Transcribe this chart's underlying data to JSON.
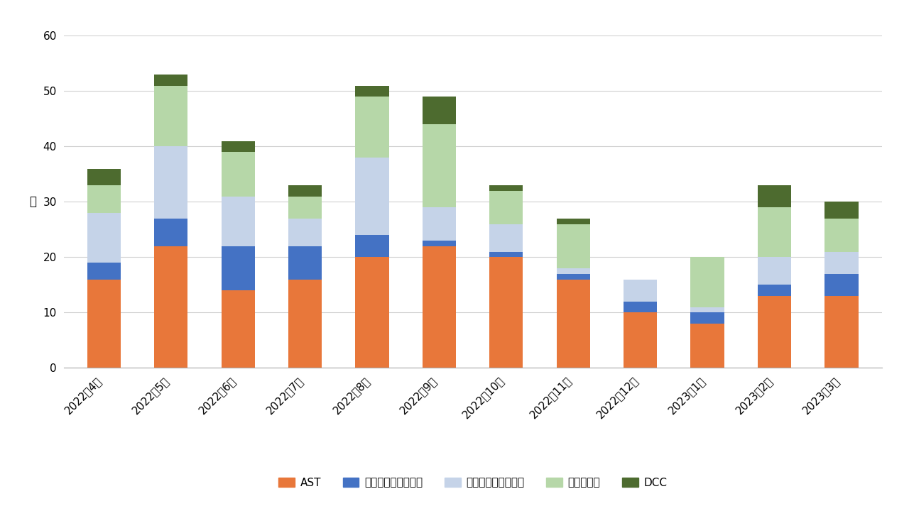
{
  "months": [
    "2022年4月",
    "2022年5月",
    "2022年6月",
    "2022年7月",
    "2022年8月",
    "2022年9月",
    "2022年10月",
    "2022年11月",
    "2022年12月",
    "2023年1月",
    "2023年2月",
    "2023年3月"
  ],
  "AST": [
    16,
    22,
    14,
    16,
    20,
    22,
    20,
    16,
    10,
    8,
    13,
    13
  ],
  "分類不能": [
    3,
    5,
    8,
    6,
    4,
    1,
    1,
    1,
    2,
    2,
    2,
    4
  ],
  "特定要因": [
    9,
    13,
    9,
    5,
    14,
    6,
    5,
    1,
    4,
    1,
    5,
    4
  ],
  "コンサルト": [
    5,
    11,
    8,
    4,
    11,
    15,
    6,
    8,
    0,
    9,
    9,
    6
  ],
  "DCC": [
    3,
    2,
    2,
    2,
    2,
    5,
    1,
    1,
    0,
    0,
    4,
    3
  ],
  "colors": {
    "AST": "#E8773A",
    "分類不能": "#4472C4",
    "特定要因": "#C5D3E8",
    "コンサルト": "#B6D7A8",
    "DCC": "#4D6B2F"
  },
  "legend_labels": [
    "AST",
    "支援なし・分類不能",
    "支援なし・特定要因",
    "コンサルト",
    "DCC"
  ],
  "ylabel": "件",
  "ylim": [
    0,
    60
  ],
  "yticks": [
    0,
    10,
    20,
    30,
    40,
    50,
    60
  ],
  "background_color": "#ffffff",
  "grid_color": "#d0d0d0"
}
